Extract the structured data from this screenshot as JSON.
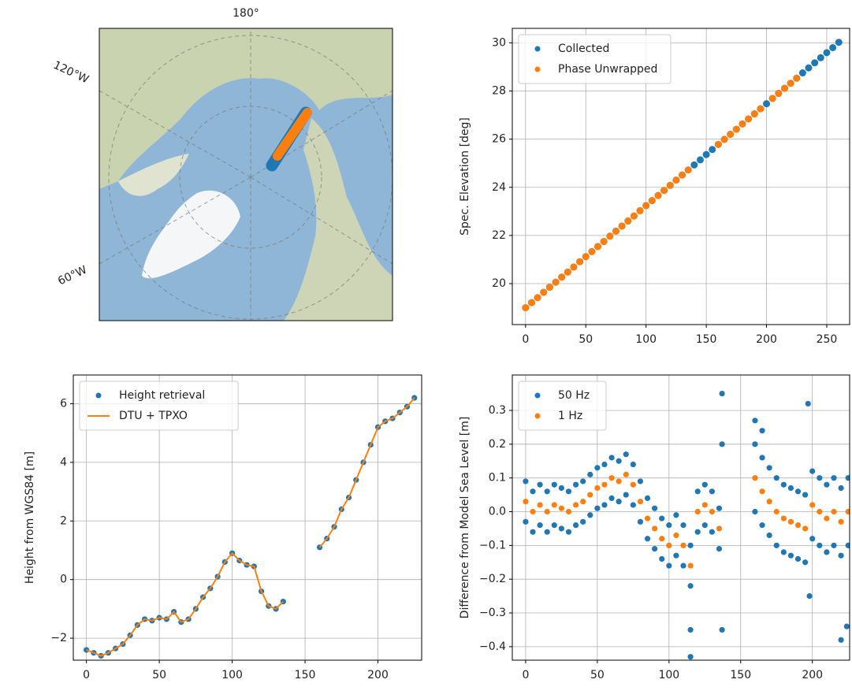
{
  "chart_data": [
    {
      "type": "map",
      "lon_labels": [
        "180°",
        "120°W",
        "60°W"
      ]
    },
    {
      "type": "scatter",
      "ylabel": "Spec. Elevation [deg]",
      "xlim": [
        -11,
        269
      ],
      "ylim": [
        18.3,
        30.6
      ],
      "xticks": [
        0,
        50,
        100,
        150,
        200,
        250
      ],
      "yticks": [
        20,
        22,
        24,
        26,
        28,
        30
      ],
      "grid": true,
      "legend": "upper left",
      "series": [
        {
          "name": "Collected",
          "color": "#1f77b4",
          "x": [
            0,
            5,
            10,
            15,
            20,
            25,
            30,
            35,
            40,
            45,
            50,
            55,
            60,
            65,
            70,
            75,
            80,
            85,
            90,
            95,
            100,
            105,
            110,
            115,
            120,
            125,
            130,
            135,
            140,
            145,
            150,
            155,
            160,
            165,
            170,
            175,
            180,
            185,
            190,
            195,
            200,
            205,
            210,
            215,
            220,
            225,
            230,
            235,
            240,
            245,
            250,
            255,
            260
          ],
          "values": [
            19.0,
            19.21,
            19.42,
            19.64,
            19.85,
            20.06,
            20.27,
            20.48,
            20.69,
            20.91,
            21.12,
            21.33,
            21.54,
            21.75,
            21.97,
            22.18,
            22.39,
            22.6,
            22.81,
            23.03,
            23.24,
            23.45,
            23.66,
            23.87,
            24.08,
            24.3,
            24.51,
            24.72,
            24.93,
            25.14,
            25.36,
            25.57,
            25.78,
            25.99,
            26.2,
            26.41,
            26.63,
            26.84,
            27.05,
            27.26,
            27.47,
            27.69,
            27.9,
            28.11,
            28.32,
            28.53,
            28.75,
            28.96,
            29.17,
            29.38,
            29.59,
            29.8,
            30.02
          ]
        },
        {
          "name": "Phase Unwrapped",
          "color": "#ff7f0e",
          "x": [
            0,
            5,
            10,
            15,
            20,
            25,
            30,
            35,
            40,
            45,
            50,
            55,
            60,
            65,
            70,
            75,
            80,
            85,
            90,
            95,
            100,
            105,
            110,
            115,
            120,
            125,
            130,
            135,
            160,
            165,
            170,
            175,
            180,
            185,
            190,
            195,
            205,
            210,
            215,
            220,
            225
          ],
          "values": [
            19.0,
            19.21,
            19.42,
            19.64,
            19.85,
            20.06,
            20.27,
            20.48,
            20.69,
            20.91,
            21.12,
            21.33,
            21.54,
            21.75,
            21.97,
            22.18,
            22.39,
            22.6,
            22.81,
            23.03,
            23.24,
            23.45,
            23.66,
            23.87,
            24.08,
            24.3,
            24.51,
            24.72,
            25.78,
            25.99,
            26.2,
            26.41,
            26.63,
            26.84,
            27.05,
            27.26,
            27.69,
            27.9,
            28.11,
            28.32,
            28.53
          ]
        }
      ]
    },
    {
      "type": "line",
      "ylabel": "Height from WGS84 [m]",
      "xlim": [
        -9,
        230
      ],
      "ylim": [
        -2.75,
        6.98
      ],
      "xticks": [
        0,
        50,
        100,
        150,
        200
      ],
      "yticks": [
        {
          "value": -2,
          "label": "−2"
        },
        0,
        2,
        4,
        6
      ],
      "grid": true,
      "legend": "upper left",
      "x": [
        0,
        5,
        10,
        15,
        20,
        25,
        30,
        35,
        40,
        45,
        50,
        55,
        60,
        65,
        70,
        75,
        80,
        85,
        90,
        95,
        100,
        105,
        110,
        115,
        120,
        125,
        130,
        135,
        145,
        150,
        155,
        160,
        165,
        170,
        175,
        180,
        185,
        190,
        195,
        200,
        205,
        210,
        215,
        220,
        225
      ],
      "series": [
        {
          "name": "Height retrieval",
          "color": "#1f77b4",
          "style": "scatter",
          "values": [
            -2.4,
            -2.5,
            -2.6,
            -2.5,
            -2.35,
            -2.2,
            -1.9,
            -1.55,
            -1.35,
            -1.4,
            -1.3,
            -1.35,
            -1.1,
            -1.45,
            -1.35,
            -1.0,
            -0.6,
            -0.3,
            0.1,
            0.6,
            0.9,
            0.65,
            0.5,
            0.45,
            -0.4,
            -0.9,
            -1.0,
            -0.75,
            null,
            null,
            null,
            1.1,
            1.4,
            1.8,
            2.4,
            2.8,
            3.4,
            4.0,
            4.6,
            5.2,
            5.4,
            5.5,
            5.7,
            5.9,
            6.2
          ]
        },
        {
          "name": "DTU + TPXO",
          "color": "#ff7f0e",
          "style": "line",
          "values": [
            -2.4,
            -2.5,
            -2.6,
            -2.5,
            -2.35,
            -2.2,
            -1.9,
            -1.55,
            -1.35,
            -1.4,
            -1.3,
            -1.35,
            -1.1,
            -1.45,
            -1.35,
            -1.0,
            -0.6,
            -0.3,
            0.1,
            0.6,
            0.9,
            0.65,
            0.5,
            0.45,
            -0.4,
            -0.9,
            -1.0,
            -0.75,
            null,
            null,
            null,
            1.1,
            1.4,
            1.8,
            2.4,
            2.8,
            3.4,
            4.0,
            4.6,
            5.2,
            5.4,
            5.5,
            5.7,
            5.9,
            6.2
          ]
        }
      ]
    },
    {
      "type": "scatter",
      "ylabel": "Difference from Model Sea Level [m]",
      "xlim": [
        -9.3,
        226
      ],
      "ylim": [
        -0.44,
        0.405
      ],
      "xticks": [
        0,
        50,
        100,
        150,
        200
      ],
      "yticks": [
        {
          "value": -0.4,
          "label": "−0.4"
        },
        {
          "value": -0.3,
          "label": "−0.3"
        },
        {
          "value": -0.2,
          "label": "−0.2"
        },
        {
          "value": -0.1,
          "label": "−0.1"
        },
        {
          "value": 0,
          "label": "0.0"
        },
        0.1,
        0.2,
        0.3
      ],
      "grid": true,
      "legend": "upper left",
      "series": [
        {
          "name": "50 Hz",
          "color": "#1f77b4",
          "x": [
            0,
            0,
            5,
            5,
            10,
            10,
            15,
            15,
            20,
            20,
            25,
            25,
            30,
            30,
            35,
            35,
            40,
            40,
            45,
            45,
            50,
            50,
            55,
            55,
            60,
            60,
            65,
            65,
            70,
            70,
            75,
            75,
            80,
            80,
            85,
            85,
            90,
            90,
            95,
            95,
            100,
            100,
            105,
            105,
            110,
            110,
            115,
            115,
            120,
            120,
            125,
            125,
            130,
            130,
            135,
            135,
            160,
            160,
            165,
            165,
            170,
            170,
            175,
            175,
            180,
            180,
            185,
            185,
            190,
            190,
            195,
            195,
            200,
            200,
            205,
            205,
            210,
            210,
            215,
            215,
            220,
            220,
            225,
            225,
            115,
            115,
            137,
            137,
            137,
            197,
            198,
            220,
            224,
            160,
            165
          ],
          "values": [
            0.09,
            -0.03,
            0.06,
            -0.06,
            0.08,
            -0.04,
            0.06,
            -0.06,
            0.08,
            -0.04,
            0.07,
            -0.05,
            0.06,
            -0.06,
            0.08,
            -0.04,
            0.09,
            -0.03,
            0.11,
            -0.01,
            0.13,
            0.01,
            0.14,
            0.02,
            0.16,
            0.04,
            0.15,
            0.03,
            0.17,
            0.05,
            0.14,
            0.02,
            0.09,
            -0.03,
            0.04,
            -0.08,
            0.01,
            -0.11,
            -0.02,
            -0.14,
            -0.04,
            -0.16,
            -0.01,
            -0.13,
            -0.04,
            -0.16,
            -0.1,
            -0.22,
            0.06,
            -0.06,
            0.08,
            -0.04,
            0.06,
            -0.06,
            0.01,
            -0.11,
            0.2,
            0.0,
            0.16,
            -0.04,
            0.13,
            -0.07,
            0.1,
            -0.1,
            0.08,
            -0.12,
            0.07,
            -0.13,
            0.06,
            -0.14,
            0.05,
            -0.15,
            0.12,
            -0.08,
            0.1,
            -0.1,
            0.08,
            -0.12,
            0.1,
            -0.1,
            0.07,
            -0.13,
            0.1,
            -0.1,
            -0.43,
            -0.35,
            0.35,
            0.2,
            -0.35,
            0.32,
            -0.25,
            -0.38,
            -0.34,
            0.27,
            0.24
          ]
        },
        {
          "name": "1 Hz",
          "color": "#ff7f0e",
          "x": [
            0,
            5,
            10,
            15,
            20,
            25,
            30,
            35,
            40,
            45,
            50,
            55,
            60,
            65,
            70,
            75,
            80,
            85,
            90,
            95,
            100,
            105,
            110,
            115,
            120,
            125,
            130,
            135,
            160,
            165,
            170,
            175,
            180,
            185,
            190,
            195,
            200,
            205,
            210,
            215,
            220,
            225
          ],
          "values": [
            0.03,
            0.0,
            0.02,
            0.0,
            0.02,
            0.01,
            0.0,
            0.02,
            0.03,
            0.05,
            0.07,
            0.08,
            0.1,
            0.09,
            0.11,
            0.08,
            0.03,
            -0.02,
            -0.05,
            -0.08,
            -0.1,
            -0.07,
            -0.1,
            -0.16,
            0.0,
            0.02,
            0.0,
            -0.05,
            0.1,
            0.06,
            0.03,
            0.0,
            -0.02,
            -0.03,
            -0.04,
            -0.05,
            0.02,
            0.0,
            -0.02,
            0.0,
            -0.03,
            0.0
          ]
        }
      ]
    }
  ]
}
